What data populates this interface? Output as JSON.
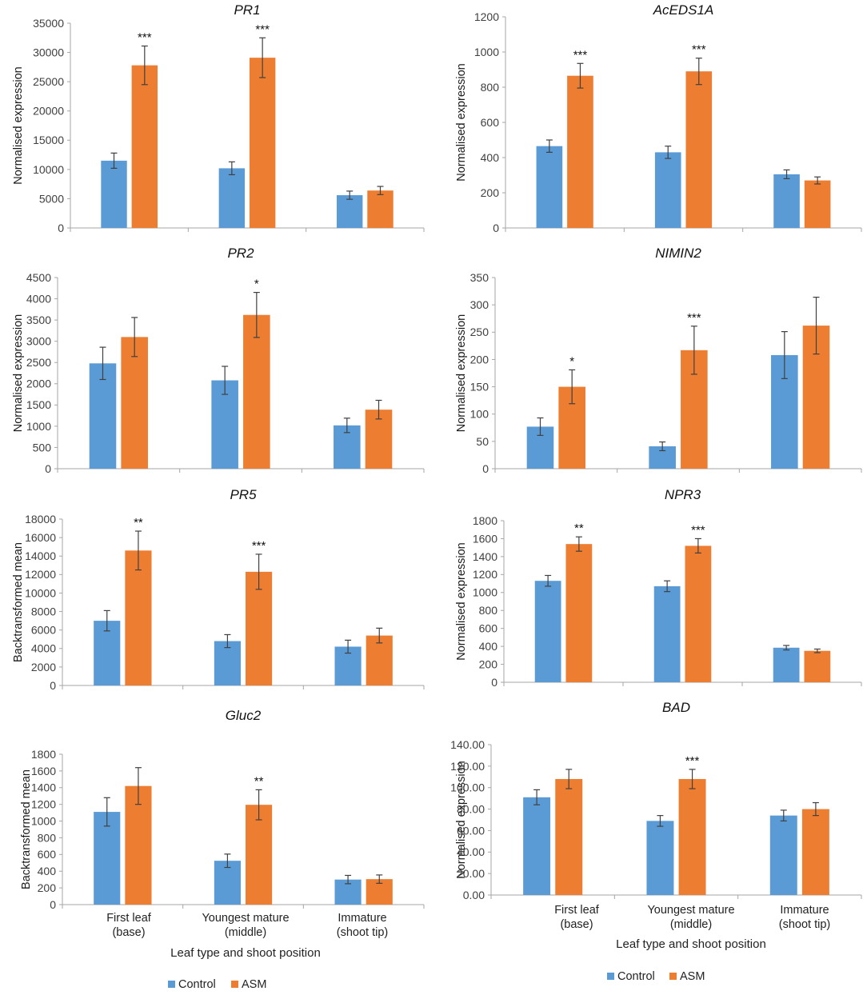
{
  "colors": {
    "control": "#5b9bd5",
    "asm": "#ed7d31",
    "axis": "#a6a6a6",
    "error": "#404040"
  },
  "legend": {
    "control": "Control",
    "asm": "ASM"
  },
  "x_axis_title": "Leaf type and shoot position",
  "categories": [
    {
      "line1": "First leaf",
      "line2": "(base)"
    },
    {
      "line1": "Youngest mature",
      "line2": "(middle)"
    },
    {
      "line1": "Immature",
      "line2": "(shoot tip)"
    }
  ],
  "chart_data": [
    {
      "type": "bar",
      "title": "PR1",
      "ylabel": "Normalised expression",
      "categories": [
        "First leaf (base)",
        "Youngest mature (middle)",
        "Immature (shoot tip)"
      ],
      "ylim": [
        0,
        35000
      ],
      "yticks": [
        "0",
        "5000",
        "10000",
        "15000",
        "20000",
        "25000",
        "30000",
        "35000"
      ],
      "series": [
        {
          "name": "Control",
          "values": [
            11500,
            10200,
            5600
          ],
          "errors": [
            1300,
            1100,
            700
          ]
        },
        {
          "name": "ASM",
          "values": [
            27800,
            29100,
            6400
          ],
          "errors": [
            3300,
            3400,
            700
          ]
        }
      ],
      "significance": [
        "***",
        "***",
        ""
      ]
    },
    {
      "type": "bar",
      "title": "AcEDS1A",
      "ylabel": "Normalised expression",
      "categories": [
        "First leaf (base)",
        "Youngest mature (middle)",
        "Immature (shoot tip)"
      ],
      "ylim": [
        0,
        1200
      ],
      "yticks": [
        "0",
        "200",
        "400",
        "600",
        "800",
        "1000",
        "1200"
      ],
      "series": [
        {
          "name": "Control",
          "values": [
            465,
            430,
            305
          ],
          "errors": [
            35,
            35,
            25
          ]
        },
        {
          "name": "ASM",
          "values": [
            865,
            890,
            270
          ],
          "errors": [
            70,
            75,
            20
          ]
        }
      ],
      "significance": [
        "***",
        "***",
        ""
      ]
    },
    {
      "type": "bar",
      "title": "PR2",
      "ylabel": "Normalised expression",
      "categories": [
        "First leaf (base)",
        "Youngest mature (middle)",
        "Immature (shoot tip)"
      ],
      "ylim": [
        0,
        4500
      ],
      "yticks": [
        "0",
        "500",
        "1000",
        "1500",
        "2000",
        "2500",
        "3000",
        "3500",
        "4000",
        "4500"
      ],
      "series": [
        {
          "name": "Control",
          "values": [
            2480,
            2080,
            1020
          ],
          "errors": [
            380,
            330,
            170
          ]
        },
        {
          "name": "ASM",
          "values": [
            3100,
            3620,
            1390
          ],
          "errors": [
            460,
            530,
            220
          ]
        }
      ],
      "significance": [
        "",
        "*",
        ""
      ]
    },
    {
      "type": "bar",
      "title": "NIMIN2",
      "ylabel": "Normalised expression",
      "categories": [
        "First leaf (base)",
        "Youngest mature (middle)",
        "Immature (shoot tip)"
      ],
      "ylim": [
        0,
        350
      ],
      "yticks": [
        "0",
        "50",
        "100",
        "150",
        "200",
        "250",
        "300",
        "350"
      ],
      "series": [
        {
          "name": "Control",
          "values": [
            77,
            41,
            208
          ],
          "errors": [
            16,
            8,
            43
          ]
        },
        {
          "name": "ASM",
          "values": [
            150,
            217,
            262
          ],
          "errors": [
            31,
            44,
            52
          ]
        }
      ],
      "significance": [
        "*",
        "***",
        ""
      ]
    },
    {
      "type": "bar",
      "title": "PR5",
      "ylabel": "Backtransformed mean",
      "categories": [
        "First leaf (base)",
        "Youngest mature (middle)",
        "Immature (shoot tip)"
      ],
      "ylim": [
        0,
        18000
      ],
      "yticks": [
        "0",
        "2000",
        "4000",
        "6000",
        "8000",
        "10000",
        "12000",
        "14000",
        "16000",
        "18000"
      ],
      "series": [
        {
          "name": "Control",
          "values": [
            7000,
            4800,
            4200
          ],
          "errors": [
            1100,
            700,
            700
          ]
        },
        {
          "name": "ASM",
          "values": [
            14600,
            12300,
            5400
          ],
          "errors": [
            2100,
            1900,
            800
          ]
        }
      ],
      "significance": [
        "**",
        "***",
        ""
      ]
    },
    {
      "type": "bar",
      "title": "NPR3",
      "ylabel": "Normalised expression",
      "categories": [
        "First leaf (base)",
        "Youngest mature (middle)",
        "Immature (shoot tip)"
      ],
      "ylim": [
        0,
        1800
      ],
      "yticks": [
        "0",
        "200",
        "400",
        "600",
        "800",
        "1000",
        "1200",
        "1400",
        "1600",
        "1800"
      ],
      "series": [
        {
          "name": "Control",
          "values": [
            1130,
            1070,
            385
          ],
          "errors": [
            60,
            60,
            25
          ]
        },
        {
          "name": "ASM",
          "values": [
            1540,
            1520,
            350
          ],
          "errors": [
            80,
            80,
            20
          ]
        }
      ],
      "significance": [
        "**",
        "***",
        ""
      ]
    },
    {
      "type": "bar",
      "title": "Gluc2",
      "ylabel": "Backtransformed mean",
      "categories": [
        "First leaf (base)",
        "Youngest mature (middle)",
        "Immature (shoot tip)"
      ],
      "ylim": [
        0,
        1800
      ],
      "yticks": [
        "0",
        "200",
        "400",
        "600",
        "800",
        "1000",
        "1200",
        "1400",
        "1600",
        "1800"
      ],
      "series": [
        {
          "name": "Control",
          "values": [
            1110,
            525,
            300
          ],
          "errors": [
            170,
            80,
            50
          ]
        },
        {
          "name": "ASM",
          "values": [
            1420,
            1195,
            305
          ],
          "errors": [
            220,
            180,
            50
          ]
        }
      ],
      "significance": [
        "",
        "**",
        ""
      ]
    },
    {
      "type": "bar",
      "title": "BAD",
      "ylabel": "Normalised expression",
      "categories": [
        "First leaf (base)",
        "Youngest mature (middle)",
        "Immature (shoot tip)"
      ],
      "ylim": [
        0,
        140
      ],
      "yticks": [
        "0.00",
        "20.00",
        "40.00",
        "60.00",
        "80.00",
        "100.00",
        "120.00",
        "140.00"
      ],
      "series": [
        {
          "name": "Control",
          "values": [
            91,
            69,
            74
          ],
          "errors": [
            7,
            5,
            5
          ]
        },
        {
          "name": "ASM",
          "values": [
            108,
            108,
            80
          ],
          "errors": [
            9,
            9,
            6
          ]
        }
      ],
      "significance": [
        "",
        "***",
        ""
      ]
    }
  ]
}
